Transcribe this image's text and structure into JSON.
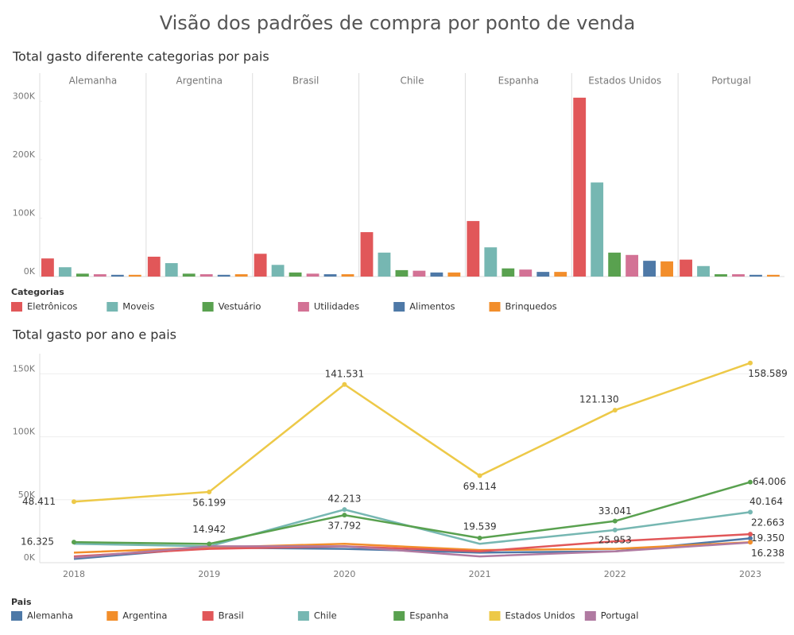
{
  "title": "Visão dos padrões de compra por ponto de venda",
  "chart_data": [
    {
      "type": "faceted-bar",
      "title": "Total gasto diferente categorias por pais",
      "facets": [
        "Alemanha",
        "Argentina",
        "Brasil",
        "Chile",
        "Espanha",
        "Estados Unidos",
        "Portugal"
      ],
      "legend_title": "Categorias",
      "series": [
        {
          "name": "Eletrônicos",
          "color": "#e15759",
          "values": [
            31000,
            34000,
            39000,
            76000,
            95000,
            306000,
            29000
          ]
        },
        {
          "name": "Moveis",
          "color": "#76b7b2",
          "values": [
            16000,
            23000,
            20000,
            41000,
            50000,
            161000,
            18000
          ]
        },
        {
          "name": "Vestuário",
          "color": "#59a14f",
          "values": [
            5000,
            5000,
            7000,
            11000,
            14000,
            41000,
            4000
          ]
        },
        {
          "name": "Utilidades",
          "color": "#d37295",
          "values": [
            4000,
            4000,
            5000,
            10000,
            12000,
            37000,
            4000
          ]
        },
        {
          "name": "Alimentos",
          "color": "#4e79a7",
          "values": [
            3000,
            3000,
            4000,
            7000,
            8000,
            27000,
            3000
          ]
        },
        {
          "name": "Brinquedos",
          "color": "#f28e2b",
          "values": [
            3000,
            4000,
            4000,
            7000,
            8000,
            26000,
            3000
          ]
        }
      ],
      "ylim": [
        0,
        348000
      ],
      "yticks": [
        {
          "value": 0,
          "label": "0K"
        },
        {
          "value": 100000,
          "label": "100K"
        },
        {
          "value": 200000,
          "label": "200K"
        },
        {
          "value": 300000,
          "label": "300K"
        }
      ]
    },
    {
      "type": "line",
      "title": "Total gasto por ano e pais",
      "categories": [
        "2018",
        "2019",
        "2020",
        "2021",
        "2022",
        "2023"
      ],
      "legend_title": "Pais",
      "series": [
        {
          "name": "Alemanha",
          "color": "#4e79a7",
          "values": [
            3000,
            12000,
            11000,
            8000,
            9000,
            19350
          ],
          "value_labels": [
            null,
            null,
            null,
            null,
            null,
            "19.350"
          ]
        },
        {
          "name": "Argentina",
          "color": "#f28e2b",
          "values": [
            8000,
            12000,
            15000,
            10000,
            11000,
            16238
          ],
          "value_labels": [
            null,
            null,
            null,
            null,
            null,
            "16.238"
          ]
        },
        {
          "name": "Brasil",
          "color": "#e15759",
          "values": [
            5000,
            11000,
            13000,
            9000,
            17000,
            22663
          ],
          "value_labels": [
            null,
            null,
            null,
            null,
            null,
            "22.663"
          ]
        },
        {
          "name": "Chile",
          "color": "#76b7b2",
          "values": [
            15000,
            13000,
            42213,
            15000,
            25953,
            40164
          ],
          "value_labels": [
            null,
            null,
            "42.213",
            null,
            "25.953",
            "40.164"
          ]
        },
        {
          "name": "Espanha",
          "color": "#59a14f",
          "values": [
            16325,
            14942,
            37792,
            19539,
            33041,
            64006
          ],
          "value_labels": [
            "16.325",
            "14.942",
            "37.792",
            "19.539",
            "33.041",
            "64.006"
          ]
        },
        {
          "name": "Estados Unidos",
          "color": "#edc948",
          "values": [
            48411,
            56199,
            141531,
            69114,
            121130,
            158589
          ],
          "value_labels": [
            "48.411",
            "56.199",
            "141.531",
            "69.114",
            "121.130",
            "158.589"
          ]
        },
        {
          "name": "Portugal",
          "color": "#b07aa1",
          "values": [
            4000,
            13000,
            13000,
            5000,
            9000,
            16000
          ]
        }
      ],
      "ylim": [
        0,
        166000
      ],
      "yticks": [
        {
          "value": 0,
          "label": "0K"
        },
        {
          "value": 50000,
          "label": "50K"
        },
        {
          "value": 100000,
          "label": "100K"
        },
        {
          "value": 150000,
          "label": "150K"
        }
      ]
    }
  ]
}
